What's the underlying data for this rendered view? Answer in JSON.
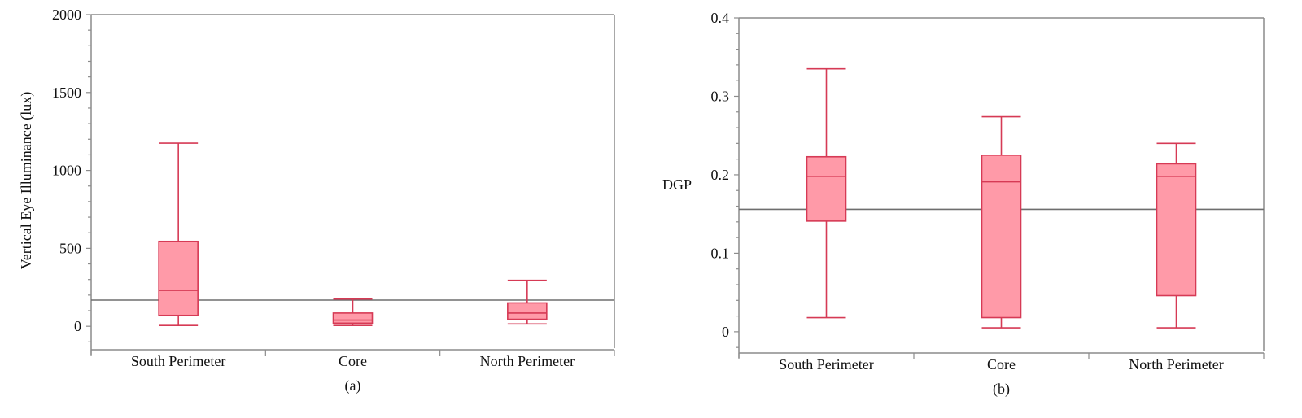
{
  "colors": {
    "box_fill": "#ff9aa8",
    "box_stroke": "#d63a55",
    "ref_line": "#6e6e6e"
  },
  "chart_data": [
    {
      "type": "box",
      "panel_label": "(a)",
      "xlabel": "",
      "ylabel": "Vertical Eye Illuminance (lux)",
      "ylim": [
        -140,
        2000
      ],
      "yticks": [
        0,
        500,
        1000,
        1500,
        2000
      ],
      "ytick_labels": [
        "0",
        "500",
        "1000",
        "1500",
        "2000"
      ],
      "grid": false,
      "categories": [
        "South Perimeter",
        "Core",
        "North Perimeter"
      ],
      "boxes": [
        {
          "whisker_low": 5,
          "q1": 70,
          "median": 230,
          "q3": 545,
          "whisker_high": 1175
        },
        {
          "whisker_low": 5,
          "q1": 20,
          "median": 40,
          "q3": 85,
          "whisker_high": 175
        },
        {
          "whisker_low": 15,
          "q1": 45,
          "median": 85,
          "q3": 150,
          "whisker_high": 295
        }
      ],
      "reference_line": 168
    },
    {
      "type": "box",
      "panel_label": "(b)",
      "xlabel": "",
      "ylabel": "DGP",
      "ylim": [
        -0.025,
        0.4
      ],
      "yticks": [
        0,
        0.1,
        0.2,
        0.3,
        0.4
      ],
      "ytick_labels": [
        "0",
        "0.1",
        "0.2",
        "0.3",
        "0.4"
      ],
      "grid": false,
      "categories": [
        "South Perimeter",
        "Core",
        "North Perimeter"
      ],
      "boxes": [
        {
          "whisker_low": 0.018,
          "q1": 0.141,
          "median": 0.198,
          "q3": 0.223,
          "whisker_high": 0.335
        },
        {
          "whisker_low": 0.005,
          "q1": 0.018,
          "median": 0.191,
          "q3": 0.225,
          "whisker_high": 0.274
        },
        {
          "whisker_low": 0.005,
          "q1": 0.046,
          "median": 0.198,
          "q3": 0.214,
          "whisker_high": 0.24
        }
      ],
      "reference_line": 0.156
    }
  ]
}
